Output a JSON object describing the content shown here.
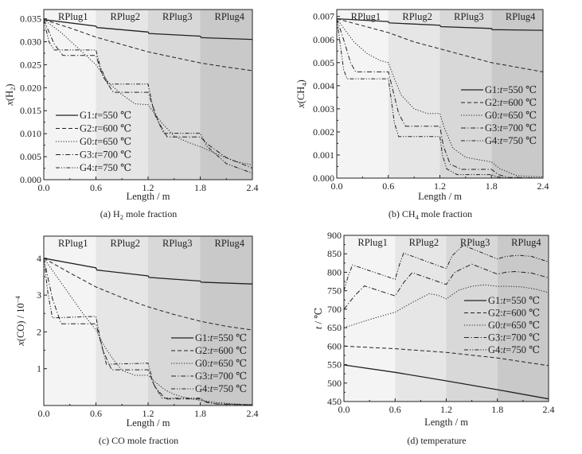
{
  "figure": {
    "region_colors": [
      "#f4f4f4",
      "#e6e6e6",
      "#d8d8d8",
      "#c9c9c9"
    ],
    "line_color": "#222222"
  },
  "chart_data": [
    {
      "id": "a",
      "type": "line",
      "title": "(a) H2 mole fraction",
      "title_parts": [
        "(a) H",
        "2",
        " mole fraction"
      ],
      "xlabel": "Length / m",
      "ylabel": "x(H2)",
      "ylabel_parts": [
        "x",
        "(H",
        "2",
        ")"
      ],
      "xlim": [
        0,
        2.4
      ],
      "ylim": [
        0,
        0.037
      ],
      "xticks": [
        0,
        0.6,
        1.2,
        1.8,
        2.4
      ],
      "xtick_labels": [
        "0.0",
        "0.6",
        "1.2",
        "1.8",
        "2.4"
      ],
      "yticks": [
        0,
        0.005,
        0.01,
        0.015,
        0.02,
        0.025,
        0.03,
        0.035
      ],
      "ytick_labels": [
        "0.000",
        "0.005",
        "0.010",
        "0.015",
        "0.020",
        "0.025",
        "0.030",
        "0.035"
      ],
      "regions": [
        {
          "label": "RPlug1",
          "x0": 0,
          "x1": 0.6
        },
        {
          "label": "RPlug2",
          "x0": 0.6,
          "x1": 1.2
        },
        {
          "label": "RPlug3",
          "x0": 1.2,
          "x1": 1.8
        },
        {
          "label": "RPlug4",
          "x0": 1.8,
          "x1": 2.4
        }
      ],
      "legend_position": "lower-left",
      "grid": false,
      "series": [
        {
          "name": "G1:t=550 ℃",
          "group": "G1",
          "temp": "550",
          "style": "solid",
          "x": [
            0,
            0.6,
            0.61,
            1.2,
            1.21,
            1.8,
            1.81,
            2.4
          ],
          "y": [
            0.0348,
            0.0334,
            0.0331,
            0.0321,
            0.0318,
            0.0312,
            0.0309,
            0.0305
          ]
        },
        {
          "name": "G2:t=600 ℃",
          "group": "G2",
          "temp": "600",
          "style": "dash",
          "x": [
            0,
            0.3,
            0.6,
            0.9,
            1.2,
            1.5,
            1.8,
            2.1,
            2.4
          ],
          "y": [
            0.0348,
            0.033,
            0.031,
            0.0294,
            0.0278,
            0.0266,
            0.0254,
            0.0245,
            0.0237
          ]
        },
        {
          "name": "G0:t=650 ℃",
          "group": "G0",
          "temp": "650",
          "style": "dot",
          "x": [
            0,
            0.2,
            0.4,
            0.6,
            0.75,
            0.9,
            1.05,
            1.2,
            1.35,
            1.5,
            1.65,
            1.8,
            2.0,
            2.2,
            2.4
          ],
          "y": [
            0.0348,
            0.032,
            0.0285,
            0.025,
            0.021,
            0.0185,
            0.0165,
            0.0163,
            0.0125,
            0.0095,
            0.0082,
            0.0072,
            0.0055,
            0.004,
            0.0032
          ]
        },
        {
          "name": "G3:t=700 ℃",
          "group": "G3",
          "temp": "700",
          "style": "dashdot",
          "x": [
            0,
            0.12,
            0.22,
            0.6,
            0.68,
            0.8,
            1.2,
            1.32,
            1.42,
            1.8,
            1.9,
            2.1,
            2.4
          ],
          "y": [
            0.0348,
            0.0295,
            0.027,
            0.027,
            0.0225,
            0.019,
            0.019,
            0.0125,
            0.0093,
            0.0093,
            0.0075,
            0.0048,
            0.0025
          ]
        },
        {
          "name": "G4:t=750 ℃",
          "group": "G4",
          "temp": "750",
          "style": "dashdotdot",
          "x": [
            0,
            0.06,
            0.12,
            0.6,
            0.65,
            0.74,
            1.2,
            1.27,
            1.38,
            1.8,
            1.88,
            2.1,
            2.4
          ],
          "y": [
            0.0348,
            0.03,
            0.0282,
            0.0282,
            0.0245,
            0.0208,
            0.0208,
            0.0145,
            0.0101,
            0.0101,
            0.0072,
            0.0035,
            0.0014
          ]
        }
      ]
    },
    {
      "id": "b",
      "type": "line",
      "title": "(b) CH4 mole fraction",
      "title_parts": [
        "(b) CH",
        "4",
        " mole fraction"
      ],
      "xlabel": "Length / m",
      "ylabel": "x(CH4)",
      "ylabel_parts": [
        "x",
        "(CH",
        "4",
        ")"
      ],
      "xlim": [
        0,
        2.4
      ],
      "ylim": [
        0,
        0.0073
      ],
      "xticks": [
        0,
        0.6,
        1.2,
        1.8,
        2.4
      ],
      "xtick_labels": [
        "0.0",
        "0.6",
        "1.2",
        "1.8",
        "2.4"
      ],
      "yticks": [
        0,
        0.001,
        0.002,
        0.003,
        0.004,
        0.005,
        0.006,
        0.007
      ],
      "ytick_labels": [
        "0.000",
        "0.001",
        "0.002",
        "0.003",
        "0.004",
        "0.005",
        "0.006",
        "0.007"
      ],
      "regions": [
        {
          "label": "RPlug1",
          "x0": 0,
          "x1": 0.6
        },
        {
          "label": "RPlug2",
          "x0": 0.6,
          "x1": 1.2
        },
        {
          "label": "RPlug3",
          "x0": 1.2,
          "x1": 1.8
        },
        {
          "label": "RPlug4",
          "x0": 1.8,
          "x1": 2.4
        }
      ],
      "legend_position": "center-right",
      "grid": false,
      "series": [
        {
          "name": "G1:t=550 ℃",
          "group": "G1",
          "temp": "550",
          "style": "solid",
          "x": [
            0,
            0.6,
            0.61,
            1.2,
            1.21,
            1.8,
            1.81,
            2.4
          ],
          "y": [
            0.0069,
            0.00678,
            0.00672,
            0.00662,
            0.00656,
            0.00648,
            0.00643,
            0.0064
          ]
        },
        {
          "name": "G2:t=600 ℃",
          "group": "G2",
          "temp": "600",
          "style": "dash",
          "x": [
            0,
            0.3,
            0.6,
            0.9,
            1.2,
            1.5,
            1.8,
            2.1,
            2.4
          ],
          "y": [
            0.0069,
            0.0066,
            0.0063,
            0.0059,
            0.0056,
            0.0053,
            0.005,
            0.0048,
            0.0046
          ]
        },
        {
          "name": "G0:t=650 ℃",
          "group": "G0",
          "temp": "650",
          "style": "dot",
          "x": [
            0,
            0.1,
            0.2,
            0.35,
            0.5,
            0.6,
            0.65,
            0.75,
            0.9,
            1.05,
            1.2,
            1.25,
            1.35,
            1.5,
            1.65,
            1.8,
            1.9,
            2.1,
            2.4
          ],
          "y": [
            0.0069,
            0.0064,
            0.0059,
            0.0054,
            0.0051,
            0.005,
            0.0045,
            0.0036,
            0.003,
            0.0028,
            0.0028,
            0.0022,
            0.0013,
            0.0009,
            0.0008,
            0.0007,
            0.0004,
            0.0001,
            5e-05
          ]
        },
        {
          "name": "G3:t=700 ℃",
          "group": "G3",
          "temp": "700",
          "style": "dashdot",
          "x": [
            0,
            0.08,
            0.16,
            0.22,
            0.6,
            0.64,
            0.72,
            0.8,
            1.2,
            1.24,
            1.32,
            1.45,
            1.8,
            1.88,
            2.0,
            2.4
          ],
          "y": [
            0.0069,
            0.006,
            0.005,
            0.0046,
            0.0046,
            0.004,
            0.0028,
            0.00225,
            0.00225,
            0.0014,
            0.0006,
            0.00038,
            0.00038,
            0.00015,
            3e-05,
            0.0
          ]
        },
        {
          "name": "G4:t=750 ℃",
          "group": "G4",
          "temp": "750",
          "style": "dashdotdot",
          "x": [
            0,
            0.04,
            0.08,
            0.12,
            0.6,
            0.63,
            0.67,
            0.72,
            1.2,
            1.23,
            1.28,
            1.4,
            1.8,
            1.86,
            2.0,
            2.4
          ],
          "y": [
            0.0069,
            0.0058,
            0.0047,
            0.0043,
            0.0043,
            0.0035,
            0.0024,
            0.0018,
            0.0018,
            0.001,
            0.0004,
            0.00015,
            0.00015,
            5e-05,
            0.0,
            0.0
          ]
        }
      ]
    },
    {
      "id": "c",
      "type": "line",
      "title": "(c) CO mole fraction",
      "title_parts": [
        "(c) CO mole fraction",
        "",
        ""
      ],
      "xlabel": "Length / m",
      "ylabel": "x(CO) / 10^-4",
      "ylabel_parts": [
        "x",
        "(CO) / 10",
        "−4",
        ""
      ],
      "xlim": [
        0,
        2.4
      ],
      "ylim": [
        0,
        4.6
      ],
      "xticks": [
        0,
        0.6,
        1.2,
        1.8,
        2.4
      ],
      "xtick_labels": [
        "0.0",
        "0.6",
        "1.2",
        "1.8",
        "2.4"
      ],
      "yticks": [
        1,
        2,
        3,
        4
      ],
      "ytick_labels": [
        "1",
        "2",
        "3",
        "4"
      ],
      "regions": [
        {
          "label": "RPlug1",
          "x0": 0,
          "x1": 0.6
        },
        {
          "label": "RPlug2",
          "x0": 0.6,
          "x1": 1.2
        },
        {
          "label": "RPlug3",
          "x0": 1.2,
          "x1": 1.8
        },
        {
          "label": "RPlug4",
          "x0": 1.8,
          "x1": 2.4
        }
      ],
      "legend_position": "lower-right",
      "grid": false,
      "series": [
        {
          "name": "G1:t=550 ℃",
          "group": "G1",
          "temp": "550",
          "style": "solid",
          "x": [
            0,
            0.6,
            0.61,
            1.2,
            1.21,
            1.8,
            1.81,
            2.4
          ],
          "y": [
            4.0,
            3.74,
            3.68,
            3.52,
            3.48,
            3.38,
            3.35,
            3.3
          ]
        },
        {
          "name": "G2:t=600 ℃",
          "group": "G2",
          "temp": "600",
          "style": "dash",
          "x": [
            0,
            0.3,
            0.6,
            0.9,
            1.2,
            1.5,
            1.8,
            2.1,
            2.4
          ],
          "y": [
            4.0,
            3.6,
            3.22,
            2.93,
            2.68,
            2.47,
            2.29,
            2.15,
            2.05
          ]
        },
        {
          "name": "G0:t=650 ℃",
          "group": "G0",
          "temp": "650",
          "style": "dot",
          "x": [
            0,
            0.15,
            0.3,
            0.45,
            0.6,
            0.7,
            0.8,
            0.9,
            1.05,
            1.2,
            1.3,
            1.4,
            1.5,
            1.65,
            1.8,
            2.0,
            2.2,
            2.4
          ],
          "y": [
            4.0,
            3.5,
            3.0,
            2.5,
            2.05,
            1.6,
            1.25,
            0.95,
            0.82,
            0.82,
            0.6,
            0.42,
            0.3,
            0.2,
            0.14,
            0.08,
            0.04,
            0.02
          ]
        },
        {
          "name": "G3:t=700 ℃",
          "group": "G3",
          "temp": "700",
          "style": "dashdot",
          "x": [
            0,
            0.1,
            0.2,
            0.6,
            0.68,
            0.78,
            1.2,
            1.28,
            1.4,
            1.8,
            1.88,
            2.0,
            2.4
          ],
          "y": [
            4.0,
            2.9,
            2.22,
            2.22,
            1.5,
            0.97,
            0.97,
            0.5,
            0.18,
            0.18,
            0.08,
            0.04,
            0.02
          ]
        },
        {
          "name": "G4:t=750 ℃",
          "group": "G4",
          "temp": "750",
          "style": "dashdotdot",
          "x": [
            0,
            0.05,
            0.1,
            0.6,
            0.65,
            0.72,
            1.2,
            1.26,
            1.36,
            1.8,
            1.86,
            2.0,
            2.4
          ],
          "y": [
            4.0,
            3.0,
            2.38,
            2.42,
            1.8,
            1.12,
            1.15,
            0.6,
            0.2,
            0.2,
            0.1,
            0.04,
            0.02
          ]
        }
      ]
    },
    {
      "id": "d",
      "type": "line",
      "title": "(d) temperature",
      "title_parts": [
        "(d) temperature",
        "",
        ""
      ],
      "xlabel": "Length / m",
      "ylabel": "t / ℃",
      "ylabel_parts": [
        "t",
        " / ℃",
        "",
        ""
      ],
      "xlim": [
        0,
        2.4
      ],
      "ylim": [
        450,
        900
      ],
      "xticks": [
        0,
        0.6,
        1.2,
        1.8,
        2.4
      ],
      "xtick_labels": [
        "0.0",
        "0.6",
        "1.2",
        "1.8",
        "2.4"
      ],
      "yticks": [
        450,
        500,
        550,
        600,
        650,
        700,
        750,
        800,
        850,
        900
      ],
      "ytick_labels": [
        "450",
        "500",
        "550",
        "600",
        "650",
        "700",
        "750",
        "800",
        "850",
        "900"
      ],
      "regions": [
        {
          "label": "RPlug1",
          "x0": 0,
          "x1": 0.6
        },
        {
          "label": "RPlug2",
          "x0": 0.6,
          "x1": 1.2
        },
        {
          "label": "RPlug3",
          "x0": 1.2,
          "x1": 1.8
        },
        {
          "label": "RPlug4",
          "x0": 1.8,
          "x1": 2.4
        }
      ],
      "legend_position": "center-right",
      "grid": false,
      "series": [
        {
          "name": "G1:t=550 ℃",
          "group": "G1",
          "temp": "550",
          "style": "solid",
          "x": [
            0,
            0.6,
            1.2,
            1.8,
            2.4
          ],
          "y": [
            549,
            529,
            506,
            482,
            457
          ]
        },
        {
          "name": "G2:t=600 ℃",
          "group": "G2",
          "temp": "600",
          "style": "dash",
          "x": [
            0,
            0.6,
            1.2,
            1.8,
            2.4
          ],
          "y": [
            600,
            593,
            583,
            568,
            547
          ]
        },
        {
          "name": "G0:t=650 ℃",
          "group": "G0",
          "temp": "650",
          "style": "dot",
          "x": [
            0,
            0.3,
            0.6,
            0.8,
            1.0,
            1.1,
            1.2,
            1.35,
            1.5,
            1.65,
            1.8,
            1.95,
            2.1,
            2.25,
            2.4
          ],
          "y": [
            650,
            672,
            692,
            718,
            742,
            738,
            728,
            752,
            762,
            766,
            762,
            762,
            760,
            754,
            745
          ]
        },
        {
          "name": "G3:t=700 ℃",
          "group": "G3",
          "temp": "700",
          "style": "dashdot",
          "x": [
            0,
            0.12,
            0.24,
            0.6,
            0.7,
            0.8,
            1.2,
            1.3,
            1.5,
            1.8,
            1.9,
            2.0,
            2.2,
            2.4
          ],
          "y": [
            700,
            735,
            763,
            736,
            772,
            799,
            767,
            800,
            822,
            795,
            800,
            802,
            798,
            785
          ]
        },
        {
          "name": "G4:t=750 ℃",
          "group": "G4",
          "temp": "750",
          "style": "dashdotdot",
          "x": [
            0,
            0.05,
            0.1,
            0.6,
            0.65,
            0.7,
            1.2,
            1.27,
            1.4,
            1.8,
            1.9,
            2.05,
            2.2,
            2.4
          ],
          "y": [
            750,
            790,
            820,
            781,
            820,
            852,
            810,
            845,
            873,
            836,
            843,
            846,
            843,
            828
          ]
        }
      ]
    }
  ]
}
